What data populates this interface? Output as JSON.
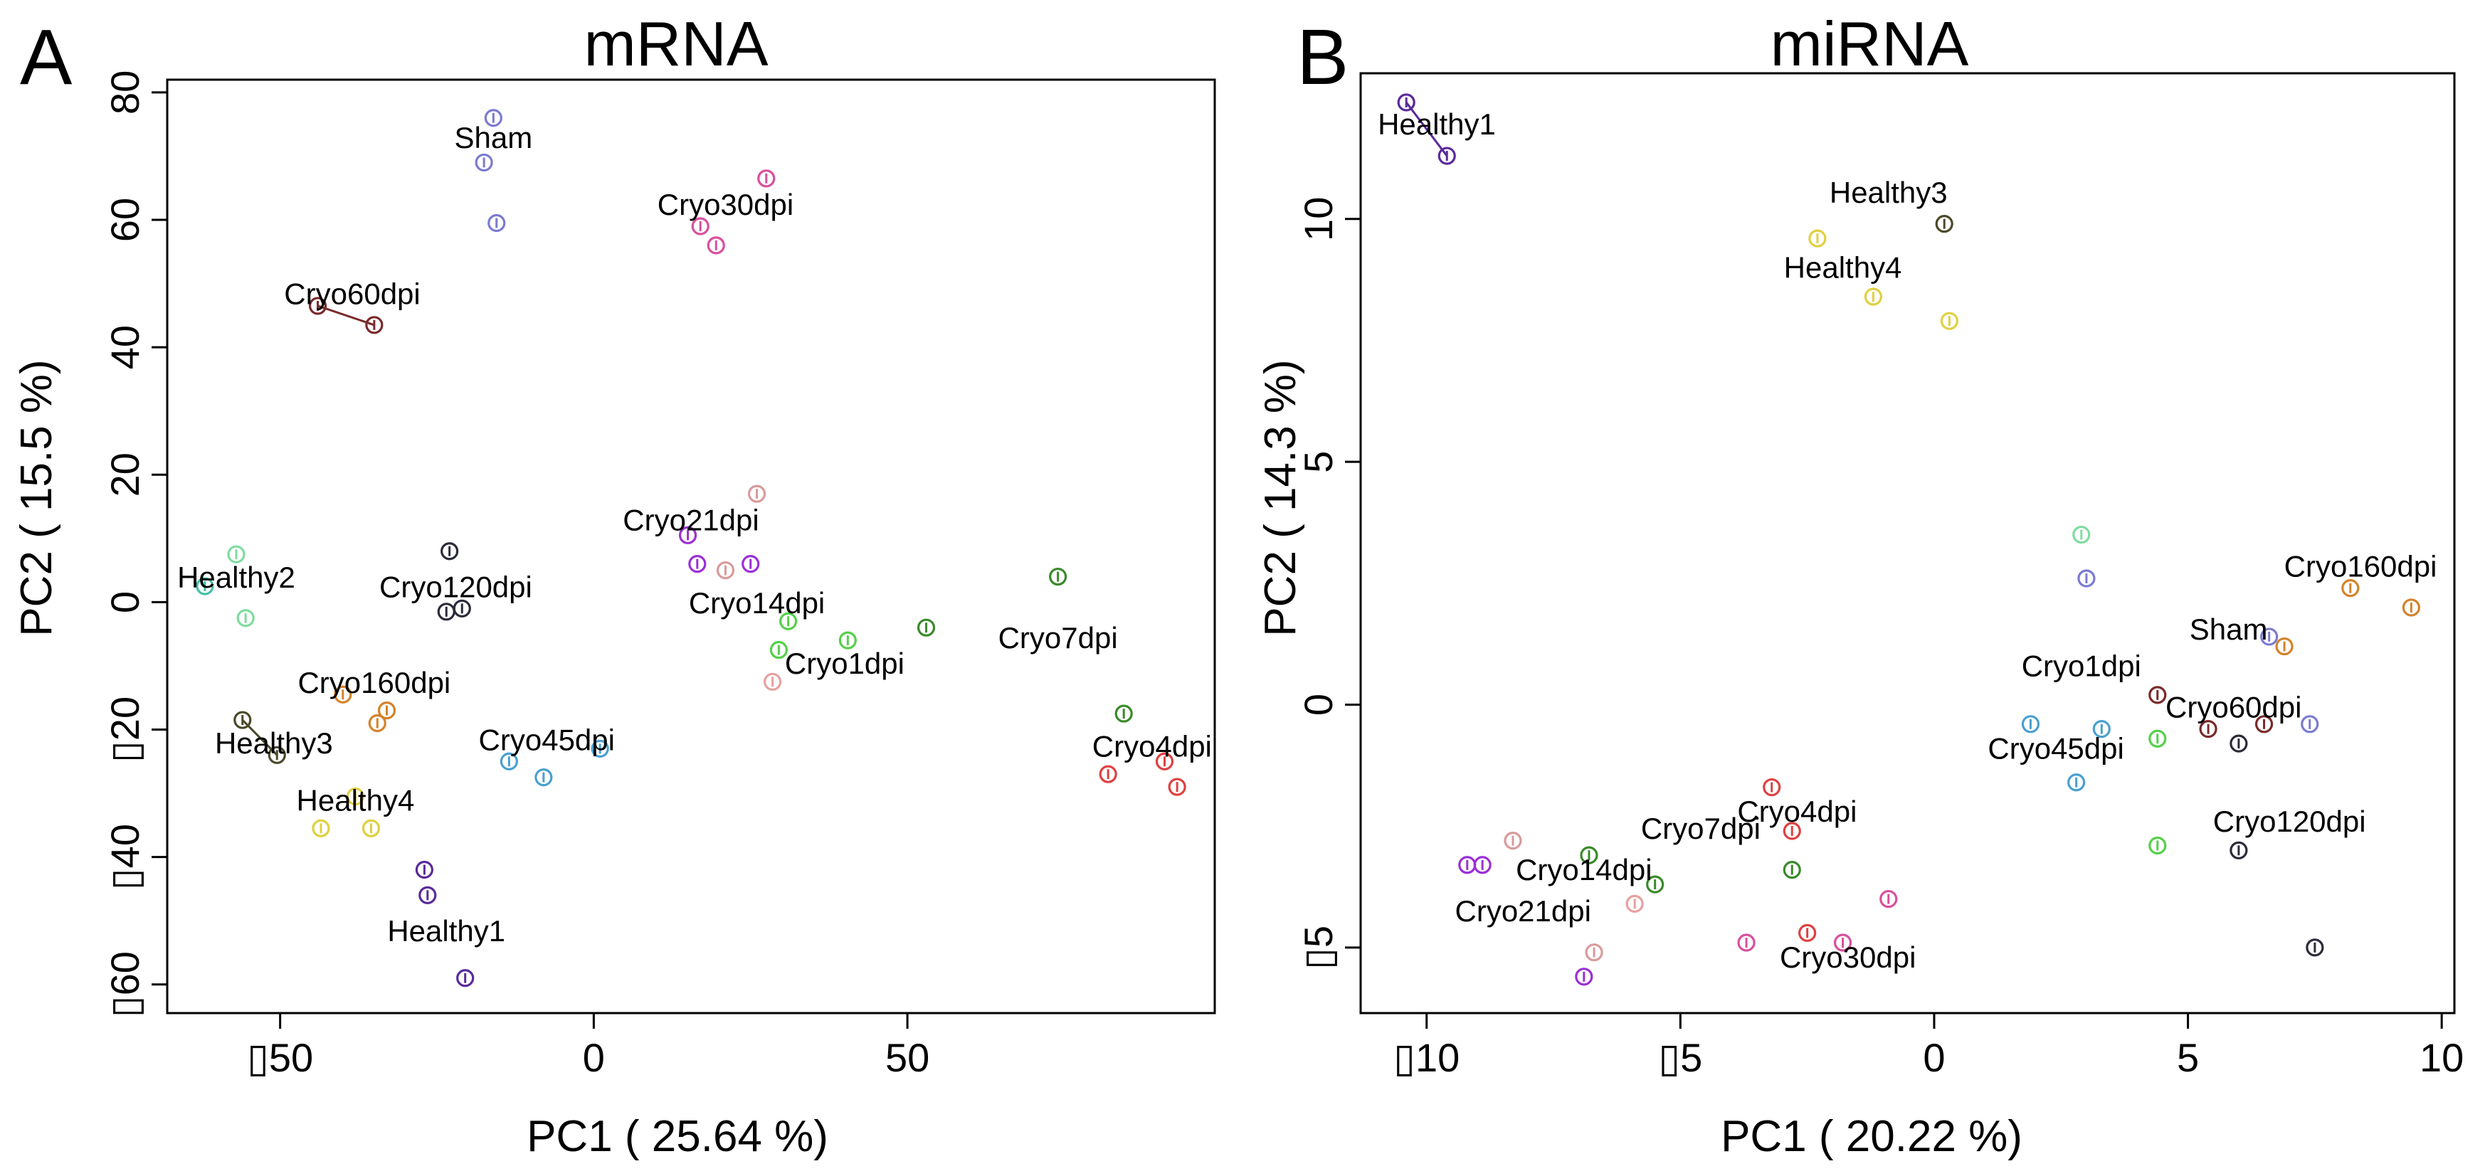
{
  "chart_data": [
    {
      "type": "scatter",
      "panel": "A",
      "title": "mRNA",
      "xlabel": "PC1 ( 25.64 %)",
      "ylabel": "PC2 ( 15.5 %)",
      "xlim": [
        -68,
        99
      ],
      "ylim": [
        -64.5,
        82
      ],
      "xticks": [
        -50,
        0,
        50
      ],
      "xtick_labels": [
        "▯50",
        "0",
        "50"
      ],
      "yticks": [
        -60,
        -40,
        -20,
        0,
        20,
        40,
        60,
        80
      ],
      "ytick_labels": [
        "▯60",
        "▯40",
        "▯20",
        "0",
        "20",
        "40",
        "60",
        "80"
      ],
      "points": [
        {
          "x": -16,
          "y": 76,
          "color": "#7b7bd1"
        },
        {
          "x": -17.5,
          "y": 69,
          "color": "#7b7bd1"
        },
        {
          "x": -15.5,
          "y": 59.5,
          "color": "#7b7bd1"
        },
        {
          "x": 27.5,
          "y": 66.5,
          "color": "#d94f9e"
        },
        {
          "x": 17,
          "y": 59,
          "color": "#d94f9e"
        },
        {
          "x": 19.5,
          "y": 56,
          "color": "#d94f9e"
        },
        {
          "x": -44,
          "y": 46.5,
          "color": "#7a2a2a"
        },
        {
          "x": -35,
          "y": 43.5,
          "color": "#7a2a2a"
        },
        {
          "x": 26,
          "y": 17,
          "color": "#d99a9a"
        },
        {
          "x": 15,
          "y": 10.5,
          "color": "#9b2fd6"
        },
        {
          "x": 16.5,
          "y": 6,
          "color": "#9b2fd6"
        },
        {
          "x": 25,
          "y": 6,
          "color": "#9b2fd6"
        },
        {
          "x": 21,
          "y": 5,
          "color": "#d99a9a"
        },
        {
          "x": -23,
          "y": 8,
          "color": "#2b2b3a"
        },
        {
          "x": -23.5,
          "y": -1.5,
          "color": "#2b2b3a"
        },
        {
          "x": -21,
          "y": -1,
          "color": "#2b2b3a"
        },
        {
          "x": -57,
          "y": 7.5,
          "color": "#7fdca0"
        },
        {
          "x": -62,
          "y": 2.5,
          "color": "#40c0a8"
        },
        {
          "x": -55.5,
          "y": -2.5,
          "color": "#7fdca0"
        },
        {
          "x": 74,
          "y": 4,
          "color": "#3a8a2a"
        },
        {
          "x": 53,
          "y": -4,
          "color": "#3a8a2a"
        },
        {
          "x": 31,
          "y": -3,
          "color": "#55d04a"
        },
        {
          "x": 40.5,
          "y": -6,
          "color": "#55d04a"
        },
        {
          "x": 29.5,
          "y": -7.5,
          "color": "#55d04a"
        },
        {
          "x": 28.5,
          "y": -12.5,
          "color": "#e8a0a0"
        },
        {
          "x": -40,
          "y": -14.5,
          "color": "#d4822a"
        },
        {
          "x": -33,
          "y": -17,
          "color": "#d4822a"
        },
        {
          "x": -34.5,
          "y": -19,
          "color": "#d4822a"
        },
        {
          "x": -56,
          "y": -18.5,
          "color": "#4a4a2a"
        },
        {
          "x": -50.5,
          "y": -24,
          "color": "#4a4a2a"
        },
        {
          "x": 84.5,
          "y": -17.5,
          "color": "#3a8a2a"
        },
        {
          "x": 91,
          "y": -25,
          "color": "#e04040"
        },
        {
          "x": 82,
          "y": -27,
          "color": "#e04040"
        },
        {
          "x": 93,
          "y": -29,
          "color": "#e04040"
        },
        {
          "x": 1,
          "y": -23,
          "color": "#4aa0d0"
        },
        {
          "x": -13.5,
          "y": -25,
          "color": "#4aa0d0"
        },
        {
          "x": -8,
          "y": -27.5,
          "color": "#4aa0d0"
        },
        {
          "x": -38,
          "y": -30.5,
          "color": "#e0d040"
        },
        {
          "x": -43.5,
          "y": -35.5,
          "color": "#e0d040"
        },
        {
          "x": -35.5,
          "y": -35.5,
          "color": "#e0d040"
        },
        {
          "x": -27,
          "y": -42,
          "color": "#5a2a9a"
        },
        {
          "x": -26.5,
          "y": -46,
          "color": "#5a2a9a"
        },
        {
          "x": -20.5,
          "y": -59,
          "color": "#5a2a9a"
        }
      ],
      "links": [
        {
          "x1": -44,
          "y1": 46.5,
          "x2": -35,
          "y2": 43.5,
          "color": "#7a2a2a"
        },
        {
          "x1": -56,
          "y1": -18.5,
          "x2": -50.5,
          "y2": -24,
          "color": "#4a4a2a"
        }
      ],
      "labels": [
        {
          "text": "Sham",
          "x": -16,
          "y": 72.5
        },
        {
          "text": "Cryo30dpi",
          "x": 21,
          "y": 62
        },
        {
          "text": "Cryo60dpi",
          "x": -38.5,
          "y": 48
        },
        {
          "text": "Cryo21dpi",
          "x": 15.5,
          "y": 12.5
        },
        {
          "text": "Healthy2",
          "x": -57,
          "y": 3.5
        },
        {
          "text": "Cryo120dpi",
          "x": -22,
          "y": 2
        },
        {
          "text": "Cryo14dpi",
          "x": 26,
          "y": -0.5
        },
        {
          "text": "Cryo7dpi",
          "x": 74,
          "y": -6
        },
        {
          "text": "Cryo1dpi",
          "x": 40,
          "y": -10
        },
        {
          "text": "Cryo160dpi",
          "x": -35,
          "y": -13
        },
        {
          "text": "Healthy3",
          "x": -51,
          "y": -22.5
        },
        {
          "text": "Cryo45dpi",
          "x": -7.5,
          "y": -22
        },
        {
          "text": "Cryo4dpi",
          "x": 89,
          "y": -23
        },
        {
          "text": "Healthy4",
          "x": -38,
          "y": -31.5
        },
        {
          "text": "Healthy1",
          "x": -23.5,
          "y": -52
        }
      ]
    },
    {
      "type": "scatter",
      "panel": "B",
      "title": "miRNA",
      "xlabel": "PC1 ( 20.22 %)",
      "ylabel": "PC2 ( 14.3 %)",
      "xlim": [
        -11.3,
        10.25
      ],
      "ylim": [
        -6.35,
        13.0
      ],
      "xticks": [
        -10,
        -5,
        0,
        5,
        10
      ],
      "xtick_labels": [
        "▯10",
        "▯5",
        "0",
        "5",
        "10"
      ],
      "yticks": [
        -5,
        0,
        5,
        10
      ],
      "ytick_labels": [
        "▯5",
        "0",
        "5",
        "10"
      ],
      "points": [
        {
          "x": -10.4,
          "y": 12.4,
          "color": "#5a2a9a"
        },
        {
          "x": -9.6,
          "y": 11.3,
          "color": "#5a2a9a"
        },
        {
          "x": 0.2,
          "y": 9.9,
          "color": "#4a4a2a"
        },
        {
          "x": -2.3,
          "y": 9.6,
          "color": "#e0d040"
        },
        {
          "x": -1.2,
          "y": 8.4,
          "color": "#e0d040"
        },
        {
          "x": 0.3,
          "y": 7.9,
          "color": "#e0d040"
        },
        {
          "x": 2.9,
          "y": 3.5,
          "color": "#7fdca0"
        },
        {
          "x": 3.0,
          "y": 2.6,
          "color": "#7b7bd1"
        },
        {
          "x": 8.2,
          "y": 2.4,
          "color": "#d4822a"
        },
        {
          "x": 9.4,
          "y": 2.0,
          "color": "#d4822a"
        },
        {
          "x": 6.6,
          "y": 1.4,
          "color": "#7b7bd1"
        },
        {
          "x": 6.9,
          "y": 1.2,
          "color": "#d4822a"
        },
        {
          "x": 4.4,
          "y": 0.2,
          "color": "#7a2a2a"
        },
        {
          "x": 1.9,
          "y": -0.4,
          "color": "#4aa0d0"
        },
        {
          "x": 3.3,
          "y": -0.5,
          "color": "#4aa0d0"
        },
        {
          "x": 5.4,
          "y": -0.5,
          "color": "#7a2a2a"
        },
        {
          "x": 6.5,
          "y": -0.4,
          "color": "#7a2a2a"
        },
        {
          "x": 7.4,
          "y": -0.4,
          "color": "#7b7bd1"
        },
        {
          "x": 4.4,
          "y": -0.7,
          "color": "#55d04a"
        },
        {
          "x": 6.0,
          "y": -0.8,
          "color": "#2b2b3a"
        },
        {
          "x": 2.8,
          "y": -1.6,
          "color": "#4aa0d0"
        },
        {
          "x": -3.2,
          "y": -1.7,
          "color": "#e04040"
        },
        {
          "x": -2.8,
          "y": -2.6,
          "color": "#e04040"
        },
        {
          "x": 4.4,
          "y": -2.9,
          "color": "#55d04a"
        },
        {
          "x": 6.0,
          "y": -3.0,
          "color": "#2b2b3a"
        },
        {
          "x": -8.3,
          "y": -2.8,
          "color": "#d99a9a"
        },
        {
          "x": -6.8,
          "y": -3.1,
          "color": "#3a8a2a"
        },
        {
          "x": -9.2,
          "y": -3.3,
          "color": "#9b2fd6"
        },
        {
          "x": -8.9,
          "y": -3.3,
          "color": "#9b2fd6"
        },
        {
          "x": -2.8,
          "y": -3.4,
          "color": "#3a8a2a"
        },
        {
          "x": -5.5,
          "y": -3.7,
          "color": "#3a8a2a"
        },
        {
          "x": -5.9,
          "y": -4.1,
          "color": "#e8a0a0"
        },
        {
          "x": -0.9,
          "y": -4.0,
          "color": "#d94f9e"
        },
        {
          "x": -2.5,
          "y": -4.7,
          "color": "#e04040"
        },
        {
          "x": -3.7,
          "y": -4.9,
          "color": "#d94f9e"
        },
        {
          "x": -1.8,
          "y": -4.9,
          "color": "#d94f9e"
        },
        {
          "x": -6.7,
          "y": -5.1,
          "color": "#d99a9a"
        },
        {
          "x": 7.5,
          "y": -5.0,
          "color": "#2b2b3a"
        },
        {
          "x": -6.9,
          "y": -5.6,
          "color": "#9b2fd6"
        }
      ],
      "links": [
        {
          "x1": -10.4,
          "y1": 12.4,
          "x2": -9.6,
          "y2": 11.3,
          "color": "#5a2a9a"
        }
      ],
      "labels": [
        {
          "text": "Healthy1",
          "x": -9.8,
          "y": 11.9
        },
        {
          "text": "Healthy3",
          "x": -0.9,
          "y": 10.5
        },
        {
          "text": "Healthy4",
          "x": -1.8,
          "y": 8.95
        },
        {
          "text": "Cryo160dpi",
          "x": 8.4,
          "y": 2.8
        },
        {
          "text": "Sham",
          "x": 5.8,
          "y": 1.5
        },
        {
          "text": "Cryo1dpi",
          "x": 2.9,
          "y": 0.75
        },
        {
          "text": "Cryo60dpi",
          "x": 5.9,
          "y": -0.1
        },
        {
          "text": "Cryo45dpi",
          "x": 2.4,
          "y": -0.95
        },
        {
          "text": "Cryo4dpi",
          "x": -2.7,
          "y": -2.25
        },
        {
          "text": "Cryo120dpi",
          "x": 7.0,
          "y": -2.45
        },
        {
          "text": "Cryo7dpi",
          "x": -4.6,
          "y": -2.6
        },
        {
          "text": "Cryo14dpi",
          "x": -6.9,
          "y": -3.45
        },
        {
          "text": "Cryo21dpi",
          "x": -8.1,
          "y": -4.3
        },
        {
          "text": "Cryo30dpi",
          "x": -1.7,
          "y": -5.25
        }
      ]
    }
  ]
}
